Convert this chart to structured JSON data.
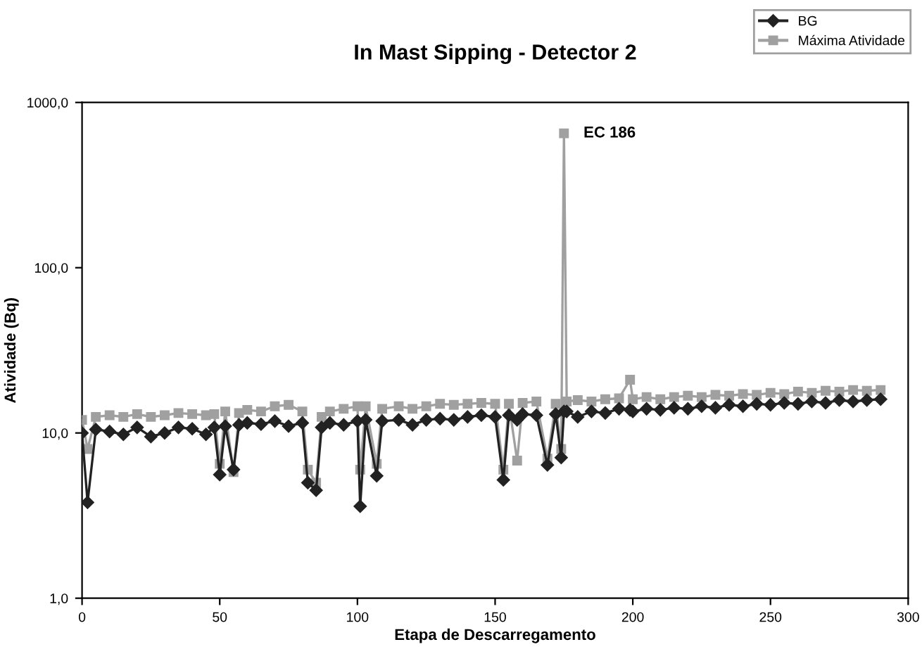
{
  "chart_data": {
    "type": "line",
    "title": "In Mast Sipping - Detector 2",
    "xlabel": "Etapa de Descarregamento",
    "ylabel": "Atividade (Bq)",
    "x": [
      0,
      2,
      5,
      10,
      15,
      20,
      25,
      30,
      35,
      40,
      45,
      48,
      50,
      52,
      55,
      57,
      60,
      65,
      70,
      75,
      80,
      82,
      85,
      87,
      90,
      95,
      100,
      101,
      103,
      107,
      109,
      115,
      120,
      125,
      130,
      135,
      140,
      145,
      150,
      153,
      155,
      158,
      160,
      165,
      169,
      172,
      174,
      175,
      176,
      180,
      185,
      190,
      195,
      199,
      200,
      205,
      210,
      215,
      220,
      225,
      230,
      235,
      240,
      245,
      250,
      255,
      260,
      265,
      270,
      275,
      280,
      285,
      290
    ],
    "series": [
      {
        "name": "BG",
        "color": "#222222",
        "marker": "diamond",
        "values": [
          10.0,
          3.8,
          10.5,
          10.2,
          9.8,
          10.8,
          9.5,
          10.0,
          10.8,
          10.6,
          9.8,
          10.8,
          5.6,
          11.0,
          6.0,
          11.2,
          11.5,
          11.3,
          11.8,
          11.0,
          11.5,
          5.0,
          4.5,
          10.8,
          11.5,
          11.2,
          11.8,
          3.6,
          12.0,
          5.5,
          11.8,
          12.0,
          11.2,
          12.0,
          12.2,
          12.0,
          12.5,
          12.8,
          12.5,
          5.2,
          12.8,
          12.0,
          13.0,
          12.8,
          6.4,
          13.0,
          7.1,
          13.5,
          13.5,
          12.5,
          13.5,
          13.2,
          14.0,
          13.8,
          13.5,
          14.0,
          13.8,
          14.2,
          14.0,
          14.5,
          14.2,
          14.8,
          14.5,
          15.0,
          14.8,
          15.2,
          15.0,
          15.5,
          15.2,
          15.8,
          15.5,
          15.8,
          16.0
        ]
      },
      {
        "name": "Máxima Atividade",
        "color": "#a0a0a0",
        "marker": "square",
        "values": [
          12.0,
          8.0,
          12.5,
          12.8,
          12.5,
          13.0,
          12.5,
          12.8,
          13.2,
          13.0,
          12.8,
          13.0,
          6.5,
          13.5,
          5.8,
          13.2,
          13.8,
          13.5,
          14.5,
          14.8,
          13.5,
          6.0,
          5.0,
          12.5,
          13.5,
          14.0,
          14.5,
          6.0,
          14.5,
          6.5,
          14.0,
          14.5,
          14.0,
          14.5,
          15.0,
          14.8,
          15.0,
          15.2,
          15.0,
          6.0,
          15.0,
          6.8,
          15.2,
          15.5,
          7.0,
          15.0,
          8.0,
          650,
          15.5,
          15.8,
          15.5,
          16.0,
          16.2,
          21.0,
          16.0,
          16.5,
          16.0,
          16.5,
          16.8,
          16.5,
          17.0,
          16.8,
          17.2,
          17.0,
          17.5,
          17.2,
          17.8,
          17.5,
          18.0,
          17.8,
          18.2,
          18.0,
          18.2
        ]
      }
    ],
    "log": "y",
    "xlim": [
      0,
      300
    ],
    "xticks": [
      0,
      50,
      100,
      150,
      200,
      250,
      300
    ],
    "ylim": [
      1,
      1000
    ],
    "yticks": [
      {
        "value": 1,
        "label": "1,0"
      },
      {
        "value": 10,
        "label": "10,0"
      },
      {
        "value": 100,
        "label": "100,0"
      },
      {
        "value": 1000,
        "label": "1000,0"
      }
    ],
    "annotations": [
      {
        "text": "EC 186",
        "x": 175,
        "y": 650
      }
    ],
    "legend": "top right",
    "grid": false,
    "line_style": "solid"
  }
}
